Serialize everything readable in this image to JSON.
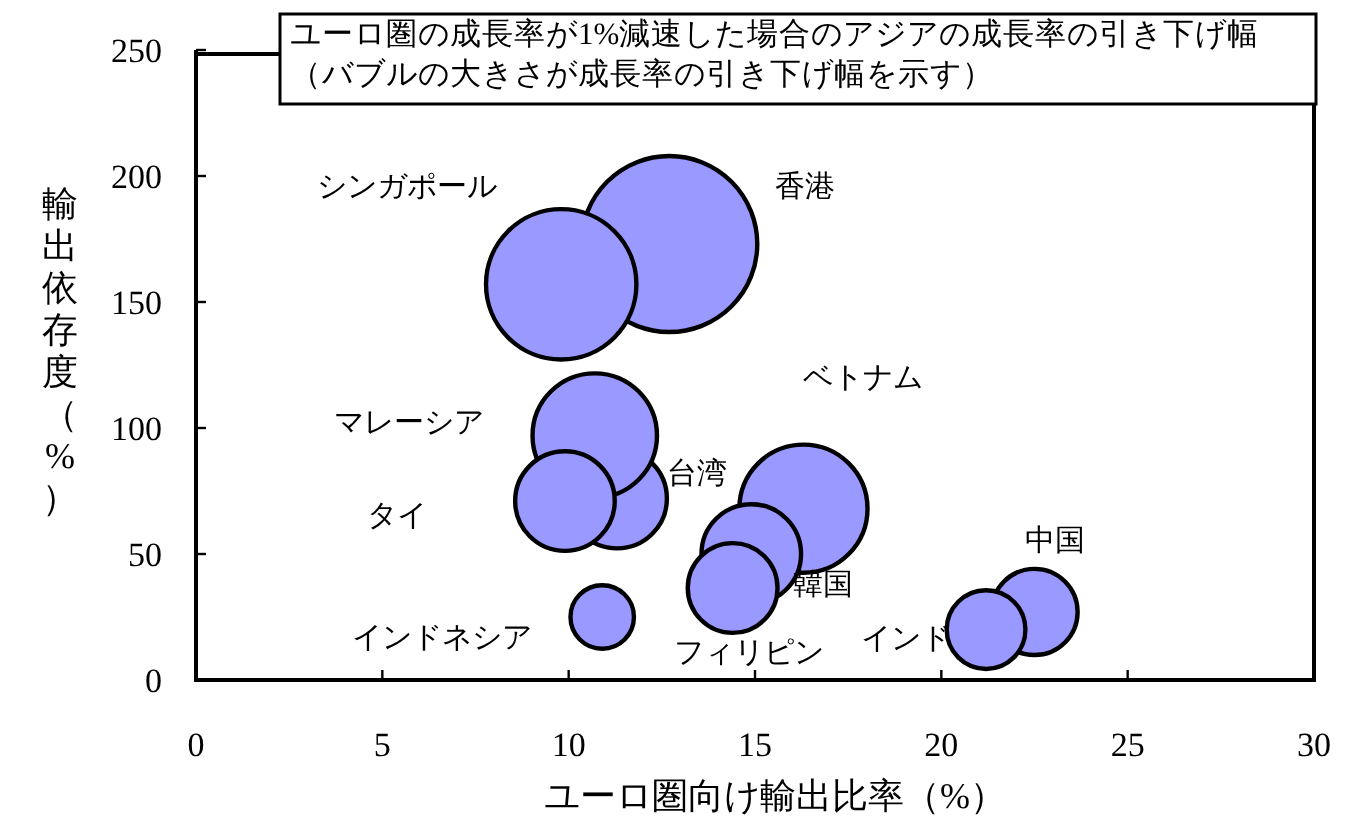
{
  "chart_data": {
    "type": "bubble",
    "title": "ユーロ圏の成長率が1%減速した場合のアジアの成長率の引き下げ幅（バブルの大きさが成長率の引き下げ幅を示す）",
    "xlabel": "ユーロ圏向け輸出比率（%）",
    "ylabel": "輸出依存度（%）",
    "xlim": [
      0,
      30
    ],
    "xticks": [
      0,
      5,
      10,
      15,
      20,
      25,
      30
    ],
    "ylim": [
      0,
      250
    ],
    "yticks": [
      0,
      50,
      100,
      150,
      200,
      250
    ],
    "grid": false,
    "legend": false,
    "series": [
      {
        "name": "香港",
        "color": "#9999ff",
        "x": [
          12.7
        ],
        "values": [
          173
        ],
        "sizes": [
          1
        ]
      },
      {
        "name": "シンガポール",
        "color": "#9999ff",
        "x": [
          9.8
        ],
        "values": [
          157
        ],
        "sizes": [
          0.73
        ]
      },
      {
        "name": "台湾",
        "color": "#9999ff",
        "x": [
          11.3
        ],
        "values": [
          72
        ],
        "sizes": [
          0.32
        ]
      },
      {
        "name": "マレーシア",
        "color": "#9999ff",
        "x": [
          10.7
        ],
        "values": [
          97
        ],
        "sizes": [
          0.5
        ]
      },
      {
        "name": "タイ",
        "color": "#9999ff",
        "x": [
          9.9
        ],
        "values": [
          71
        ],
        "sizes": [
          0.32
        ]
      },
      {
        "name": "ベトナム",
        "color": "#9999ff",
        "x": [
          16.3
        ],
        "values": [
          68
        ],
        "sizes": [
          0.53
        ]
      },
      {
        "name": "韓国",
        "color": "#9999ff",
        "x": [
          14.9
        ],
        "values": [
          50
        ],
        "sizes": [
          0.32
        ]
      },
      {
        "name": "フィリピン",
        "color": "#9999ff",
        "x": [
          14.4
        ],
        "values": [
          36.5
        ],
        "sizes": [
          0.26
        ]
      },
      {
        "name": "インドネシア",
        "color": "#9999ff",
        "x": [
          10.9
        ],
        "values": [
          25
        ],
        "sizes": [
          0.13
        ]
      },
      {
        "name": "中国",
        "color": "#9999ff",
        "x": [
          22.5
        ],
        "values": [
          27
        ],
        "sizes": [
          0.24
        ]
      },
      {
        "name": "インド",
        "color": "#9999ff",
        "x": [
          21.2
        ],
        "values": [
          20
        ],
        "sizes": [
          0.2
        ]
      }
    ]
  }
}
